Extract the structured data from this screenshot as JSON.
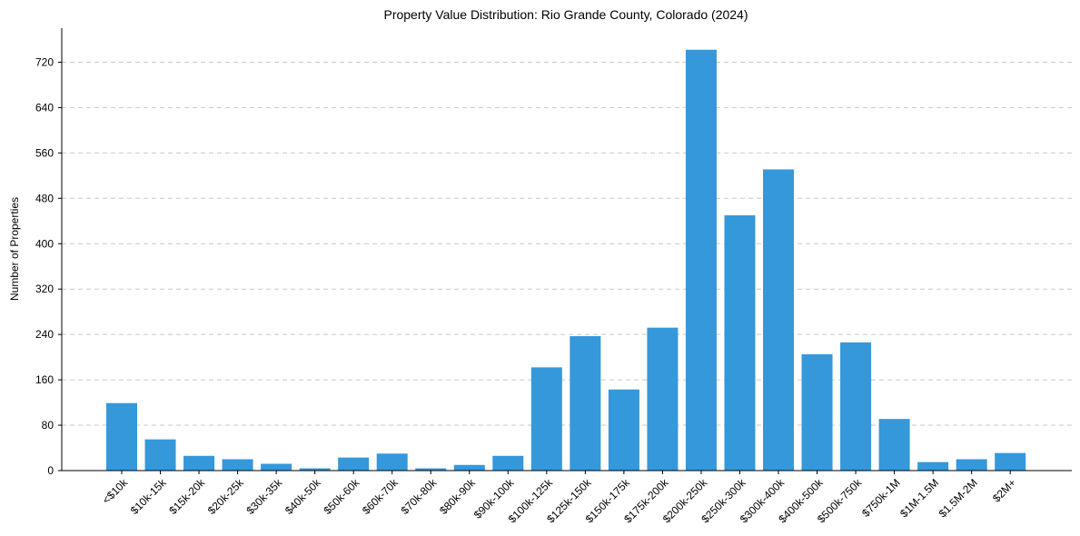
{
  "chart_data": {
    "type": "bar",
    "title": "Property Value Distribution: Rio Grande County, Colorado (2024)",
    "xlabel": "",
    "ylabel": "Number of Properties",
    "ylim": [
      0,
      780
    ],
    "yticks": [
      0,
      80,
      160,
      240,
      320,
      400,
      480,
      560,
      640,
      720
    ],
    "grid": "y-dashed",
    "color": "#3498db",
    "categories": [
      "<$10k",
      "$10k-15k",
      "$15k-20k",
      "$20k-25k",
      "$30k-35k",
      "$40k-50k",
      "$50k-60k",
      "$60k-70k",
      "$70k-80k",
      "$80k-90k",
      "$90k-100k",
      "$100k-125k",
      "$125k-150k",
      "$150k-175k",
      "$175k-200k",
      "$200k-250k",
      "$250k-300k",
      "$300k-400k",
      "$400k-500k",
      "$500k-750k",
      "$750k-1M",
      "$1M-1.5M",
      "$1.5M-2M",
      "$2M+"
    ],
    "values": [
      119,
      55,
      26,
      20,
      12,
      4,
      23,
      30,
      4,
      10,
      26,
      182,
      237,
      143,
      252,
      742,
      450,
      531,
      205,
      226,
      91,
      15,
      20,
      31
    ]
  }
}
